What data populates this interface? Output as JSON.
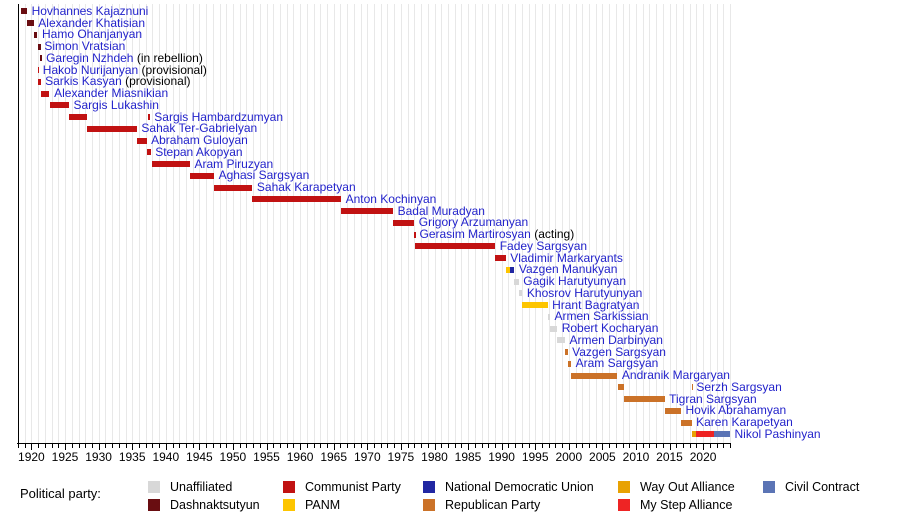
{
  "chart_data": {
    "type": "bar",
    "subtype": "gantt-timeline",
    "x_axis": {
      "start": 1918,
      "end": 2024,
      "tick_every": 1,
      "labeled_ticks": [
        1920,
        1925,
        1930,
        1935,
        1940,
        1945,
        1950,
        1955,
        1960,
        1965,
        1970,
        1975,
        1980,
        1985,
        1990,
        1995,
        2000,
        2005,
        2010,
        2015,
        2020
      ]
    },
    "colors": {
      "gridline": "#e8e8e8",
      "left_border": "#000000",
      "axis": "#000000",
      "name_text": "#2323cb",
      "note_text": "#000000"
    },
    "parties": {
      "unaffiliated": {
        "label": "Unaffiliated",
        "color": "#d8d8d8"
      },
      "dashnaktsutyun": {
        "label": "Dashnaktsutyun",
        "color": "#690d11"
      },
      "communist": {
        "label": "Communist Party",
        "color": "#c11212"
      },
      "panm": {
        "label": "PANM",
        "color": "#fdc500"
      },
      "ndu": {
        "label": "National Democratic Union",
        "color": "#2127a2"
      },
      "republican": {
        "label": "Republican Party",
        "color": "#cb7228"
      },
      "wayout": {
        "label": "Way Out Alliance",
        "color": "#e8a203"
      },
      "mystep": {
        "label": "My Step Alliance",
        "color": "#ee2424"
      },
      "civilcontract": {
        "label": "Civil Contract",
        "color": "#5b74b5"
      }
    },
    "legend": {
      "title": "Political party:",
      "items": [
        {
          "party": "unaffiliated",
          "col": 0,
          "row": 0
        },
        {
          "party": "dashnaktsutyun",
          "col": 0,
          "row": 1
        },
        {
          "party": "communist",
          "col": 1,
          "row": 0
        },
        {
          "party": "panm",
          "col": 1,
          "row": 1
        },
        {
          "party": "ndu",
          "col": 2,
          "row": 0
        },
        {
          "party": "republican",
          "col": 2,
          "row": 1
        },
        {
          "party": "wayout",
          "col": 3,
          "row": 0
        },
        {
          "party": "mystep",
          "col": 3,
          "row": 1
        },
        {
          "party": "civilcontract",
          "col": 4,
          "row": 0
        }
      ]
    },
    "rows": [
      {
        "name": "Hovhannes Kajaznuni",
        "note": "",
        "segments": [
          {
            "party": "dashnaktsutyun",
            "start": 1918.45,
            "end": 1919.35
          }
        ]
      },
      {
        "name": "Alexander Khatisian",
        "note": "",
        "segments": [
          {
            "party": "dashnaktsutyun",
            "start": 1919.35,
            "end": 1920.35
          }
        ]
      },
      {
        "name": "Hamo Ohanjanyan",
        "note": "",
        "segments": [
          {
            "party": "dashnaktsutyun",
            "start": 1920.35,
            "end": 1920.9
          }
        ]
      },
      {
        "name": "Simon Vratsian",
        "note": "",
        "segments": [
          {
            "party": "dashnaktsutyun",
            "start": 1920.9,
            "end": 1920.97
          },
          {
            "party": "dashnaktsutyun",
            "start": 1921.12,
            "end": 1921.26
          }
        ]
      },
      {
        "name": "Garegin Nzhdeh",
        "note": "(in rebellion)",
        "segments": [
          {
            "party": "dashnaktsutyun",
            "start": 1921.28,
            "end": 1921.52
          }
        ]
      },
      {
        "name": "Hakob Nurijanyan",
        "note": "(provisional)",
        "segments": [
          {
            "party": "communist",
            "start": 1920.92,
            "end": 1921.02
          }
        ]
      },
      {
        "name": "Sarkis Kasyan",
        "note": "(provisional)",
        "segments": [
          {
            "party": "communist",
            "start": 1920.91,
            "end": 1921.37
          }
        ]
      },
      {
        "name": "Alexander Miasnikian",
        "note": "",
        "segments": [
          {
            "party": "communist",
            "start": 1921.37,
            "end": 1922.7
          }
        ]
      },
      {
        "name": "Sargis Lukashin",
        "note": "",
        "segments": [
          {
            "party": "communist",
            "start": 1922.7,
            "end": 1925.6
          }
        ]
      },
      {
        "name": "Sargis Hambardzumyan",
        "note": "",
        "segments": [
          {
            "party": "communist",
            "start": 1925.6,
            "end": 1928.3
          },
          {
            "party": "communist",
            "start": 1937.4,
            "end": 1937.62
          }
        ]
      },
      {
        "name": "Sahak Ter-Gabrielyan",
        "note": "",
        "segments": [
          {
            "party": "communist",
            "start": 1928.3,
            "end": 1935.7
          }
        ]
      },
      {
        "name": "Abraham Guloyan",
        "note": "",
        "segments": [
          {
            "party": "communist",
            "start": 1935.7,
            "end": 1937.15
          }
        ]
      },
      {
        "name": "Stepan Akopyan",
        "note": "",
        "segments": [
          {
            "party": "communist",
            "start": 1937.15,
            "end": 1937.75
          }
        ]
      },
      {
        "name": "Aram Piruzyan",
        "note": "",
        "segments": [
          {
            "party": "communist",
            "start": 1938.0,
            "end": 1943.6
          }
        ]
      },
      {
        "name": "Aghasi Sargsyan",
        "note": "",
        "segments": [
          {
            "party": "communist",
            "start": 1943.6,
            "end": 1947.2
          }
        ]
      },
      {
        "name": "Sahak Karapetyan",
        "note": "",
        "segments": [
          {
            "party": "communist",
            "start": 1947.2,
            "end": 1952.9
          }
        ]
      },
      {
        "name": "Anton Kochinyan",
        "note": "",
        "segments": [
          {
            "party": "communist",
            "start": 1952.9,
            "end": 1966.1
          }
        ]
      },
      {
        "name": "Badal Muradyan",
        "note": "",
        "segments": [
          {
            "party": "communist",
            "start": 1966.1,
            "end": 1973.85
          }
        ]
      },
      {
        "name": "Grigory Arzumanyan",
        "note": "",
        "segments": [
          {
            "party": "communist",
            "start": 1973.85,
            "end": 1977.0
          }
        ]
      },
      {
        "name": "Gerasim Martirosyan",
        "note": "(acting)",
        "segments": [
          {
            "party": "communist",
            "start": 1976.95,
            "end": 1977.1
          }
        ]
      },
      {
        "name": "Fadey Sargsyan",
        "note": "",
        "segments": [
          {
            "party": "communist",
            "start": 1977.1,
            "end": 1989.05
          }
        ]
      },
      {
        "name": "Vladimir Markaryants",
        "note": "",
        "segments": [
          {
            "party": "communist",
            "start": 1989.05,
            "end": 1990.6
          }
        ]
      },
      {
        "name": "Vazgen Manukyan",
        "note": "",
        "segments": [
          {
            "party": "panm",
            "start": 1990.6,
            "end": 1991.3
          },
          {
            "party": "ndu",
            "start": 1991.3,
            "end": 1991.9
          }
        ]
      },
      {
        "name": "Gagik Harutyunyan",
        "note": "",
        "segments": [
          {
            "party": "unaffiliated",
            "start": 1991.9,
            "end": 1992.55
          }
        ]
      },
      {
        "name": "Khosrov Harutyunyan",
        "note": "",
        "segments": [
          {
            "party": "unaffiliated",
            "start": 1992.55,
            "end": 1993.1
          }
        ]
      },
      {
        "name": "Hrant Bagratyan",
        "note": "",
        "segments": [
          {
            "party": "panm",
            "start": 1993.1,
            "end": 1996.85
          }
        ]
      },
      {
        "name": "Armen Sarkissian",
        "note": "",
        "segments": [
          {
            "party": "unaffiliated",
            "start": 1996.85,
            "end": 1997.2
          }
        ]
      },
      {
        "name": "Robert Kocharyan",
        "note": "",
        "segments": [
          {
            "party": "unaffiliated",
            "start": 1997.2,
            "end": 1998.28
          }
        ]
      },
      {
        "name": "Armen Darbinyan",
        "note": "",
        "segments": [
          {
            "party": "unaffiliated",
            "start": 1998.28,
            "end": 1999.43
          }
        ]
      },
      {
        "name": "Vazgen Sargsyan",
        "note": "",
        "segments": [
          {
            "party": "republican",
            "start": 1999.43,
            "end": 1999.82
          }
        ]
      },
      {
        "name": "Aram Sargsyan",
        "note": "",
        "segments": [
          {
            "party": "republican",
            "start": 1999.84,
            "end": 2000.35
          }
        ]
      },
      {
        "name": "Andranik Margaryan",
        "note": "",
        "segments": [
          {
            "party": "republican",
            "start": 2000.35,
            "end": 2007.24
          }
        ]
      },
      {
        "name": "Serzh Sargsyan",
        "note": "",
        "segments": [
          {
            "party": "republican",
            "start": 2007.26,
            "end": 2008.27
          },
          {
            "party": "republican",
            "start": 2018.28,
            "end": 2018.33
          }
        ]
      },
      {
        "name": "Tigran Sargsyan",
        "note": "",
        "segments": [
          {
            "party": "republican",
            "start": 2008.27,
            "end": 2014.27
          }
        ]
      },
      {
        "name": "Hovik Abrahamyan",
        "note": "",
        "segments": [
          {
            "party": "republican",
            "start": 2014.27,
            "end": 2016.7
          }
        ]
      },
      {
        "name": "Karen Karapetyan",
        "note": "",
        "segments": [
          {
            "party": "republican",
            "start": 2016.7,
            "end": 2018.28
          }
        ]
      },
      {
        "name": "Nikol Pashinyan",
        "note": "",
        "segments": [
          {
            "party": "wayout",
            "start": 2018.35,
            "end": 2018.95
          },
          {
            "party": "mystep",
            "start": 2018.95,
            "end": 2021.6
          },
          {
            "party": "civilcontract",
            "start": 2021.6,
            "end": 2024.0
          }
        ]
      }
    ]
  }
}
